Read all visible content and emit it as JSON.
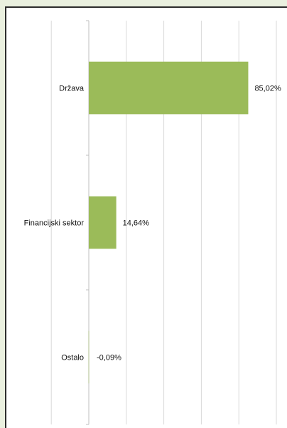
{
  "colors": {
    "background": "#eaf0df",
    "panel": "#ffffff",
    "bar": "#9bbb59",
    "gridline": "#d9d9d9",
    "axis": "#bfbfbf",
    "frame": "#2c2c2c"
  },
  "chart_data": {
    "type": "bar",
    "orientation": "horizontal",
    "categories": [
      "Država",
      "Financijski sektor",
      "Ostalo"
    ],
    "values": [
      85.02,
      14.64,
      -0.09
    ],
    "value_labels": [
      "85,02%",
      "14,64%",
      "-0,09%"
    ],
    "title": "",
    "xlabel": "",
    "ylabel": "",
    "xlim": [
      -20,
      100
    ],
    "grid": true,
    "legend": "none"
  }
}
